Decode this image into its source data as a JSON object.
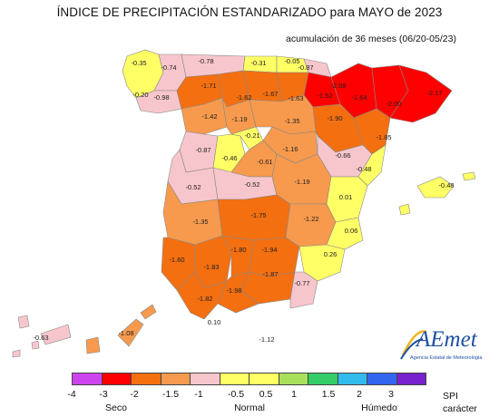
{
  "title": "ÍNDICE DE PRECIPITACIÓN ESTANDARIZADO para MAYO de 2023",
  "subtitle": "acumulación de 36 meses (06/20-05/23)",
  "logo": {
    "name": "AEmet",
    "subtitle": "Agencia Estatal de Meteorología"
  },
  "colors": {
    "very_dry": "#ff0000",
    "dry": "#f46f10",
    "mod_dry": "#f79a4d",
    "slight_dry": "#f7c6cc",
    "normal": "#ffff66",
    "slight_wet": "#c7f36c",
    "land_outside": "#ffffff",
    "border": "#666666"
  },
  "legend": {
    "colors": [
      "#cc44ee",
      "#ff0000",
      "#f46f10",
      "#f79a4d",
      "#f7c6cc",
      "#ffff66",
      "#ffff66",
      "#a8e05c",
      "#33cc66",
      "#33bbee",
      "#3366ee",
      "#7722cc"
    ],
    "ticks": [
      "-4",
      "-3",
      "-2",
      "-1.5",
      "-1",
      "-0.5",
      "0.5",
      "1",
      "1.5",
      "2",
      "3"
    ],
    "categories": [
      "Seco",
      "Normal",
      "Húmedo"
    ],
    "unit_line1": "SPI",
    "unit_line2": "carácter"
  },
  "values": [
    "-0.35",
    "-0.74",
    "-0.78",
    "-0.31",
    "-0.05",
    "-0.87",
    "-0.20",
    "-0.98",
    "-1.71",
    "-1.62",
    "-1.67",
    "-1.63",
    "-1.52",
    "-2.08",
    "-1.64",
    "-2.00",
    "-2.17",
    "-1.42",
    "-1.19",
    "-1.35",
    "-1.90",
    "-1.85",
    "-0.21",
    "-0.87",
    "-1.16",
    "-0.66",
    "-0.46",
    "-0.61",
    "-0.48",
    "-0.52",
    "-0.52",
    "-1.19",
    "0.01",
    "-0.48",
    "-1.35",
    "-1.75",
    "-1.22",
    "0.06",
    "-1.80",
    "-1.94",
    "0.26",
    "-1.60",
    "-1.83",
    "-1.87",
    "-0.77",
    "-1.82",
    "-1.98",
    "0.10",
    "-0.63",
    "-1.08",
    "-1.12"
  ]
}
